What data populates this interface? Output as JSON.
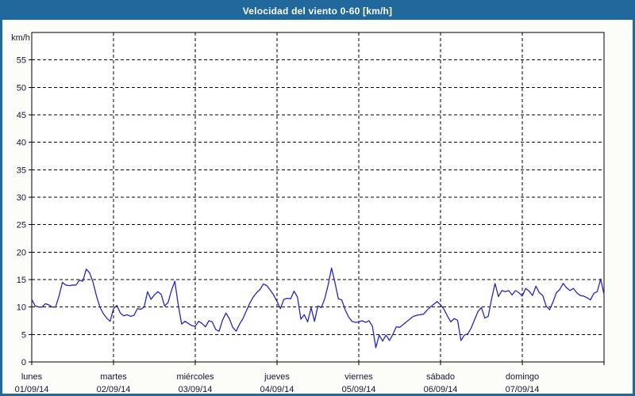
{
  "window": {
    "title": "Velocidad del viento 0-60 [km/h]",
    "colors": {
      "titlebar": "#21689c",
      "border": "#21689c",
      "title_text": "#ffffff",
      "background": "#fcfdf8",
      "plot_background": "#ffffff",
      "line": "#2626c4",
      "grid": "#000000",
      "label_text": "#15153a"
    }
  },
  "chart_data": {
    "type": "line",
    "title": "Velocidad del viento 0-60 [km/h]",
    "ylabel": "km/h",
    "xlabel": "",
    "ylim": [
      0,
      60
    ],
    "yticks": [
      0,
      5,
      10,
      15,
      20,
      25,
      30,
      35,
      40,
      45,
      50,
      55
    ],
    "grid": "dashed",
    "legend_position": "none",
    "x_axis": {
      "days": [
        {
          "name": "lunes",
          "date": "01/09/14"
        },
        {
          "name": "martes",
          "date": "02/09/14"
        },
        {
          "name": "miércoles",
          "date": "03/09/14"
        },
        {
          "name": "jueves",
          "date": "04/09/14"
        },
        {
          "name": "viernes",
          "date": "05/09/14"
        },
        {
          "name": "sábado",
          "date": "06/09/14"
        },
        {
          "name": "domingo",
          "date": "07/09/14"
        }
      ],
      "points_per_day": 24
    },
    "series": [
      {
        "name": "Velocidad del viento",
        "unit": "km/h",
        "values": [
          11.4,
          10.2,
          10.0,
          10.0,
          10.6,
          10.4,
          10.0,
          10.0,
          12.0,
          14.5,
          14.0,
          13.9,
          14.0,
          14.0,
          14.9,
          14.7,
          16.9,
          16.2,
          14.5,
          12.0,
          10.0,
          8.8,
          8.0,
          7.4,
          9.7,
          10.3,
          8.9,
          8.4,
          8.6,
          8.3,
          8.5,
          9.7,
          9.6,
          10.0,
          12.8,
          11.4,
          12.2,
          12.8,
          12.3,
          10.2,
          10.8,
          13.0,
          14.7,
          10.4,
          6.9,
          7.4,
          7.0,
          6.6,
          6.5,
          7.4,
          7.0,
          6.4,
          7.5,
          7.3,
          5.9,
          5.6,
          7.6,
          8.9,
          7.9,
          6.3,
          5.6,
          6.9,
          7.9,
          9.3,
          10.7,
          11.8,
          12.6,
          13.2,
          14.2,
          13.9,
          13.1,
          12.2,
          11.0,
          9.7,
          11.4,
          11.6,
          11.5,
          12.9,
          11.8,
          7.8,
          8.6,
          7.3,
          9.9,
          7.4,
          10.2,
          9.9,
          11.5,
          14.0,
          17.1,
          14.5,
          11.5,
          11.3,
          9.5,
          8.2,
          7.4,
          7.2,
          7.3,
          7.5,
          7.2,
          7.5,
          6.5,
          2.6,
          4.9,
          3.8,
          4.9,
          3.9,
          5.0,
          6.4,
          6.3,
          6.8,
          7.3,
          7.8,
          8.3,
          8.5,
          8.6,
          8.7,
          9.4,
          10.0,
          10.5,
          11.0,
          10.4,
          9.6,
          8.4,
          7.3,
          7.9,
          7.6,
          3.9,
          4.9,
          5.1,
          6.2,
          7.7,
          9.2,
          9.9,
          8.0,
          8.3,
          11.5,
          14.3,
          11.9,
          13.0,
          12.8,
          13.0,
          12.2,
          13.0,
          12.6,
          12.0,
          13.4,
          12.9,
          12.1,
          13.8,
          12.6,
          12.1,
          10.2,
          9.5,
          10.9,
          12.6,
          13.2,
          14.3,
          13.5,
          13.0,
          13.4,
          12.6,
          12.1,
          12.0,
          11.7,
          11.3,
          12.5,
          12.8,
          15.1,
          12.3
        ]
      }
    ]
  }
}
